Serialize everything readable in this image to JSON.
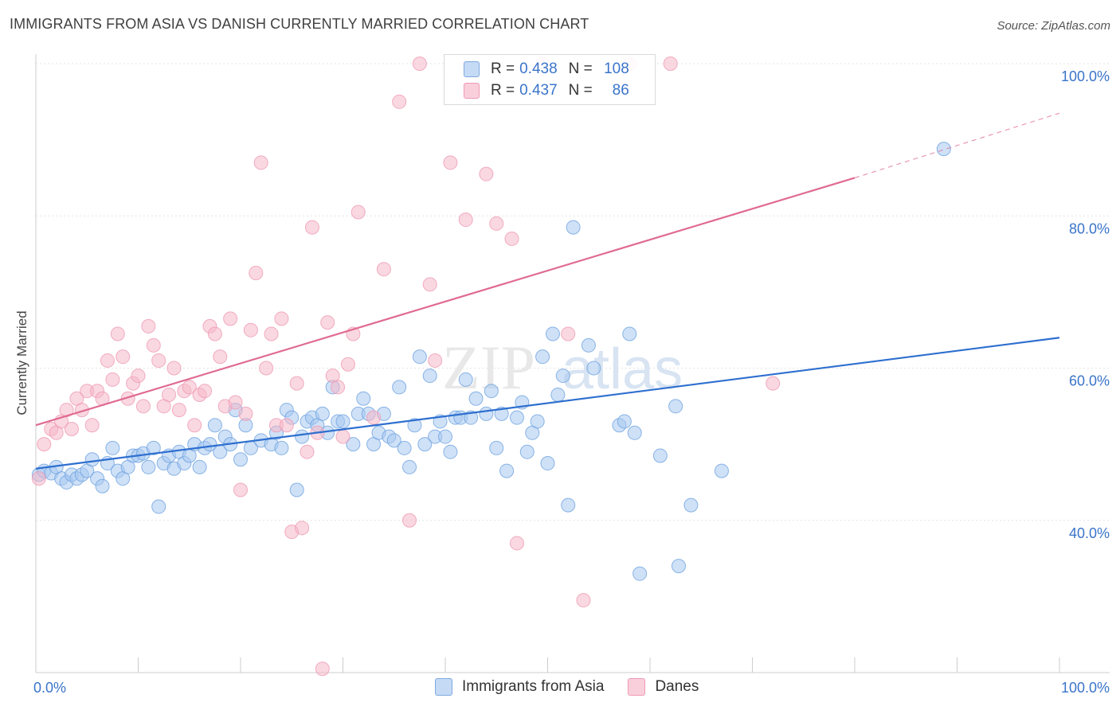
{
  "title": "IMMIGRANTS FROM ASIA VS DANISH CURRENTLY MARRIED CORRELATION CHART",
  "source": "Source: ZipAtlas.com",
  "watermark": {
    "zip": "ZIP",
    "atlas": "atlas"
  },
  "legend": {
    "rows": [
      {
        "r_label": "R =",
        "r_value": "0.438",
        "n_label": "N =",
        "n_value": "108",
        "color": "#a8c8f0"
      },
      {
        "r_label": "R =",
        "r_value": "0.437",
        "n_label": "N =",
        "n_value": "86",
        "color": "#f5b8c8"
      }
    ]
  },
  "bottom_legend": [
    {
      "label": "Immigrants from Asia",
      "color": "#a8c8f0"
    },
    {
      "label": "Danes",
      "color": "#f5b8c8"
    }
  ],
  "chart_data": {
    "type": "scatter",
    "title": "IMMIGRANTS FROM ASIA VS DANISH CURRENTLY MARRIED CORRELATION CHART",
    "xlabel": "",
    "ylabel": "Currently Married",
    "xlim": [
      0,
      100
    ],
    "ylim": [
      20,
      100
    ],
    "x_tick_labels": [
      "0.0%",
      "100.0%"
    ],
    "y_tick_labels": [
      "40.0%",
      "60.0%",
      "80.0%",
      "100.0%"
    ],
    "y_ticks": [
      40,
      60,
      80,
      100
    ],
    "grid": true,
    "legend_position": "top-center",
    "series": [
      {
        "name": "Immigrants from Asia",
        "color": "#6fa3e0",
        "fill": "#a8c8f0",
        "trend": {
          "x": [
            0,
            100
          ],
          "y": [
            46.8,
            64.0
          ],
          "color": "#2e6fcf"
        },
        "points": [
          [
            0.3,
            46
          ],
          [
            0.8,
            46.5
          ],
          [
            1.5,
            46.2
          ],
          [
            2,
            47
          ],
          [
            2.5,
            45.5
          ],
          [
            3,
            45
          ],
          [
            3.5,
            46
          ],
          [
            4,
            45.5
          ],
          [
            4.5,
            46
          ],
          [
            5,
            46.5
          ],
          [
            5.5,
            48
          ],
          [
            6,
            45.5
          ],
          [
            6.5,
            44.5
          ],
          [
            7,
            47.5
          ],
          [
            7.5,
            49.5
          ],
          [
            8,
            46.5
          ],
          [
            8.5,
            45.5
          ],
          [
            9,
            47
          ],
          [
            9.5,
            48.5
          ],
          [
            10,
            48.5
          ],
          [
            10.5,
            48.8
          ],
          [
            11,
            47
          ],
          [
            11.5,
            49.5
          ],
          [
            12,
            41.8
          ],
          [
            12.5,
            47.5
          ],
          [
            13,
            48.5
          ],
          [
            13.5,
            46.8
          ],
          [
            14,
            49
          ],
          [
            14.5,
            47.5
          ],
          [
            15,
            48.5
          ],
          [
            15.5,
            50
          ],
          [
            16,
            47
          ],
          [
            16.5,
            49.5
          ],
          [
            17,
            50
          ],
          [
            17.5,
            52.5
          ],
          [
            18,
            49
          ],
          [
            18.5,
            51
          ],
          [
            19,
            50
          ],
          [
            19.5,
            54.5
          ],
          [
            20,
            48
          ],
          [
            20.5,
            52.5
          ],
          [
            21,
            49.5
          ],
          [
            22,
            50.5
          ],
          [
            23,
            50
          ],
          [
            23.5,
            51.5
          ],
          [
            24,
            49.5
          ],
          [
            24.5,
            54.5
          ],
          [
            25,
            53.5
          ],
          [
            25.5,
            44
          ],
          [
            26,
            51
          ],
          [
            26.5,
            53
          ],
          [
            27,
            53.5
          ],
          [
            27.5,
            52.5
          ],
          [
            28,
            54
          ],
          [
            28.5,
            51.5
          ],
          [
            29,
            57.5
          ],
          [
            29.5,
            53
          ],
          [
            30,
            53
          ],
          [
            31,
            50
          ],
          [
            31.5,
            54
          ],
          [
            32,
            56
          ],
          [
            32.5,
            54
          ],
          [
            33,
            50
          ],
          [
            33.5,
            51.5
          ],
          [
            34,
            54
          ],
          [
            34.5,
            51
          ],
          [
            35,
            50.5
          ],
          [
            35.5,
            57.5
          ],
          [
            36,
            49.5
          ],
          [
            36.5,
            47
          ],
          [
            37,
            52.5
          ],
          [
            37.5,
            61.5
          ],
          [
            38,
            50
          ],
          [
            38.5,
            59
          ],
          [
            39,
            51
          ],
          [
            39.5,
            53
          ],
          [
            40,
            51
          ],
          [
            40.5,
            49
          ],
          [
            41,
            53.5
          ],
          [
            41.5,
            53.5
          ],
          [
            42,
            58.5
          ],
          [
            42.5,
            53.5
          ],
          [
            43,
            56
          ],
          [
            44,
            54
          ],
          [
            44.5,
            57
          ],
          [
            45,
            49.5
          ],
          [
            45.5,
            54
          ],
          [
            46,
            46.5
          ],
          [
            47,
            53.5
          ],
          [
            47.5,
            55.5
          ],
          [
            48,
            49
          ],
          [
            48.5,
            51.5
          ],
          [
            49,
            53
          ],
          [
            49.5,
            61.5
          ],
          [
            50,
            47.5
          ],
          [
            50.5,
            64.5
          ],
          [
            51,
            56.5
          ],
          [
            51.5,
            59
          ],
          [
            52,
            42
          ],
          [
            52.5,
            78.5
          ],
          [
            54,
            63
          ],
          [
            54.5,
            60
          ],
          [
            57,
            52.5
          ],
          [
            57.5,
            53
          ],
          [
            58,
            64.5
          ],
          [
            58.5,
            51.5
          ],
          [
            59,
            33
          ],
          [
            61,
            48.5
          ],
          [
            62.5,
            55
          ],
          [
            62.8,
            34
          ],
          [
            64,
            42
          ],
          [
            67,
            46.5
          ],
          [
            88.7,
            88.8
          ]
        ]
      },
      {
        "name": "Danes",
        "color": "#ee9ab4",
        "fill": "#f5b8c8",
        "trend": {
          "x": [
            0,
            80
          ],
          "y": [
            52.5,
            85.0
          ],
          "color": "#e06b93"
        },
        "trend_dashed": {
          "x": [
            80,
            100
          ],
          "y": [
            85.0,
            93.5
          ]
        },
        "points": [
          [
            0.3,
            45.5
          ],
          [
            0.8,
            50
          ],
          [
            1.5,
            52
          ],
          [
            2,
            51.5
          ],
          [
            2.5,
            53
          ],
          [
            3,
            54.5
          ],
          [
            3.5,
            52
          ],
          [
            4,
            56
          ],
          [
            4.5,
            54.5
          ],
          [
            5,
            57
          ],
          [
            5.5,
            52.5
          ],
          [
            6,
            57
          ],
          [
            6.5,
            56
          ],
          [
            7,
            61
          ],
          [
            7.5,
            58.5
          ],
          [
            8,
            64.5
          ],
          [
            8.5,
            61.5
          ],
          [
            9,
            56
          ],
          [
            9.5,
            58
          ],
          [
            10,
            59
          ],
          [
            10.5,
            55
          ],
          [
            11,
            65.5
          ],
          [
            11.5,
            63
          ],
          [
            12,
            61
          ],
          [
            12.5,
            55
          ],
          [
            13,
            56.5
          ],
          [
            13.5,
            60
          ],
          [
            14,
            54.5
          ],
          [
            14.5,
            57
          ],
          [
            15,
            57.5
          ],
          [
            15.5,
            52.5
          ],
          [
            16,
            56.5
          ],
          [
            16.5,
            57
          ],
          [
            17,
            65.5
          ],
          [
            17.5,
            64.5
          ],
          [
            18,
            61.5
          ],
          [
            18.5,
            55
          ],
          [
            19,
            66.5
          ],
          [
            19.5,
            55.5
          ],
          [
            20,
            44
          ],
          [
            20.5,
            54
          ],
          [
            21,
            65
          ],
          [
            21.5,
            72.5
          ],
          [
            22,
            87
          ],
          [
            22.5,
            60
          ],
          [
            23,
            64.5
          ],
          [
            23.5,
            52.5
          ],
          [
            24,
            66.5
          ],
          [
            24.5,
            52.5
          ],
          [
            25,
            38.5
          ],
          [
            25.5,
            58
          ],
          [
            26,
            39
          ],
          [
            26.5,
            49
          ],
          [
            27,
            78.5
          ],
          [
            27.5,
            51.5
          ],
          [
            28,
            20.5
          ],
          [
            28.5,
            66
          ],
          [
            29,
            59
          ],
          [
            29.5,
            57.5
          ],
          [
            30,
            51
          ],
          [
            30.5,
            60.5
          ],
          [
            31,
            64.5
          ],
          [
            31.5,
            80.5
          ],
          [
            33,
            53.5
          ],
          [
            34,
            73
          ],
          [
            35.5,
            95
          ],
          [
            36.5,
            40
          ],
          [
            37.5,
            100
          ],
          [
            38.5,
            71
          ],
          [
            39,
            61
          ],
          [
            40.5,
            87
          ],
          [
            42,
            79.5
          ],
          [
            44,
            85.5
          ],
          [
            45,
            79
          ],
          [
            46.5,
            77
          ],
          [
            47,
            37
          ],
          [
            49.5,
            100
          ],
          [
            52,
            64.5
          ],
          [
            53.5,
            29.5
          ],
          [
            58,
            100
          ],
          [
            62,
            100
          ],
          [
            72,
            58
          ]
        ]
      }
    ]
  }
}
